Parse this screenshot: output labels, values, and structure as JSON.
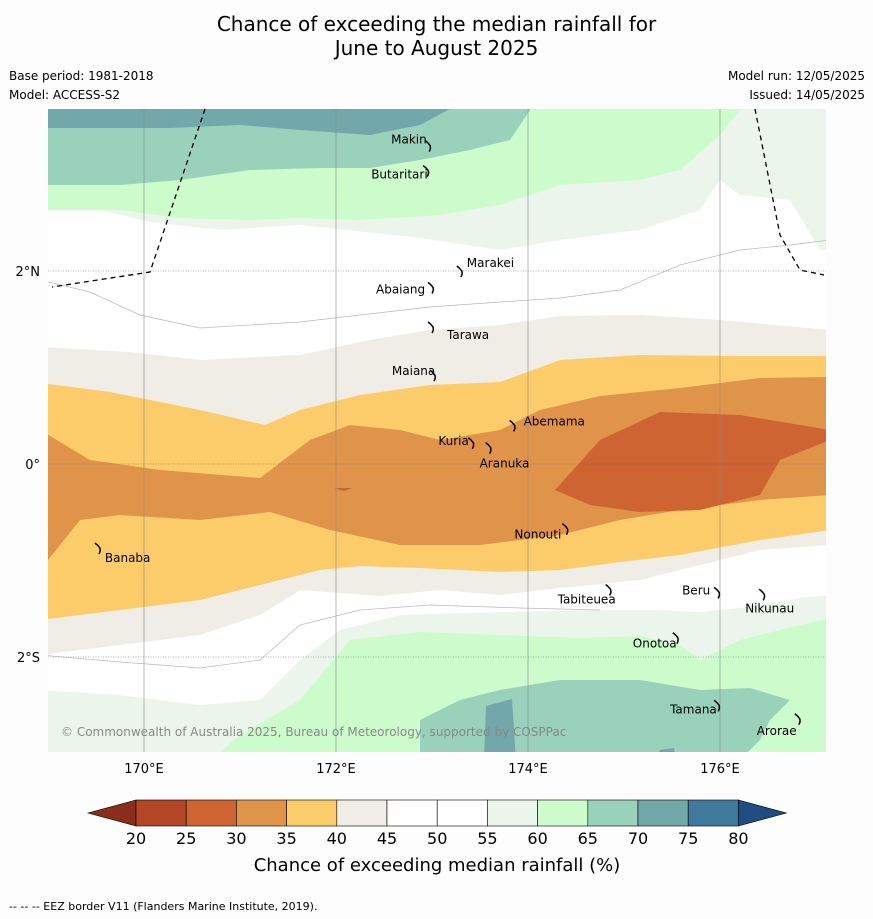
{
  "title_line1": "Chance of exceeding the median rainfall for",
  "title_line2": "June to August 2025",
  "base_period": "Base period: 1981-2018",
  "model": "Model: ACCESS-S2",
  "model_run": "Model run: 12/05/2025",
  "issued": "Issued: 14/05/2025",
  "copyright": "© Commonwealth of Australia 2025, Bureau of Meteorology, supported by COSPPac",
  "eez_note": "--  --  -- EEZ border V11 (Flanders Marine Institute, 2019).",
  "legend_label": "Chance of exceeding median rainfall (%)",
  "legend_ticks": [
    "20",
    "25",
    "30",
    "35",
    "40",
    "45",
    "50",
    "55",
    "60",
    "65",
    "70",
    "75",
    "80"
  ],
  "legend_colors": [
    "#b34725",
    "#cd6431",
    "#e0944a",
    "#fccc6a",
    "#f0ece6",
    "#ffffff",
    "#ffffff",
    "#ecf5ec",
    "#ccfccc",
    "#9ad1bb",
    "#72a8a9",
    "#3f799b"
  ],
  "legend_under_color": "#8a2e1c",
  "legend_over_color": "#1f4d82",
  "lon_labels": [
    "170°E",
    "172°E",
    "174°E",
    "176°E"
  ],
  "lat_labels": [
    "2°N",
    "0°",
    "2°S"
  ],
  "islands": [
    {
      "name": "Makin",
      "lon": 172.97,
      "lat": 3.3
    },
    {
      "name": "Butaritari",
      "lon": 172.95,
      "lat": 3.04
    },
    {
      "name": "Marakei",
      "lon": 173.3,
      "lat": 2.0
    },
    {
      "name": "Abaiang",
      "lon": 173.0,
      "lat": 1.83
    },
    {
      "name": "Tarawa",
      "lon": 173.0,
      "lat": 1.42
    },
    {
      "name": "Maiana",
      "lon": 173.02,
      "lat": 0.92
    },
    {
      "name": "Abemama",
      "lon": 173.85,
      "lat": 0.4
    },
    {
      "name": "Kuria",
      "lon": 173.42,
      "lat": 0.22
    },
    {
      "name": "Aranuka",
      "lon": 173.6,
      "lat": 0.17
    },
    {
      "name": "Nonouti",
      "lon": 174.4,
      "lat": -0.67
    },
    {
      "name": "Banaba",
      "lon": 169.53,
      "lat": -0.87
    },
    {
      "name": "Tabiteuea",
      "lon": 174.85,
      "lat": -1.3
    },
    {
      "name": "Beru",
      "lon": 175.98,
      "lat": -1.33
    },
    {
      "name": "Nikunau",
      "lon": 176.45,
      "lat": -1.35
    },
    {
      "name": "Onotoa",
      "lon": 175.55,
      "lat": -1.8
    },
    {
      "name": "Tamana",
      "lon": 175.98,
      "lat": -2.5
    },
    {
      "name": "Arorae",
      "lon": 176.82,
      "lat": -2.64
    }
  ]
}
